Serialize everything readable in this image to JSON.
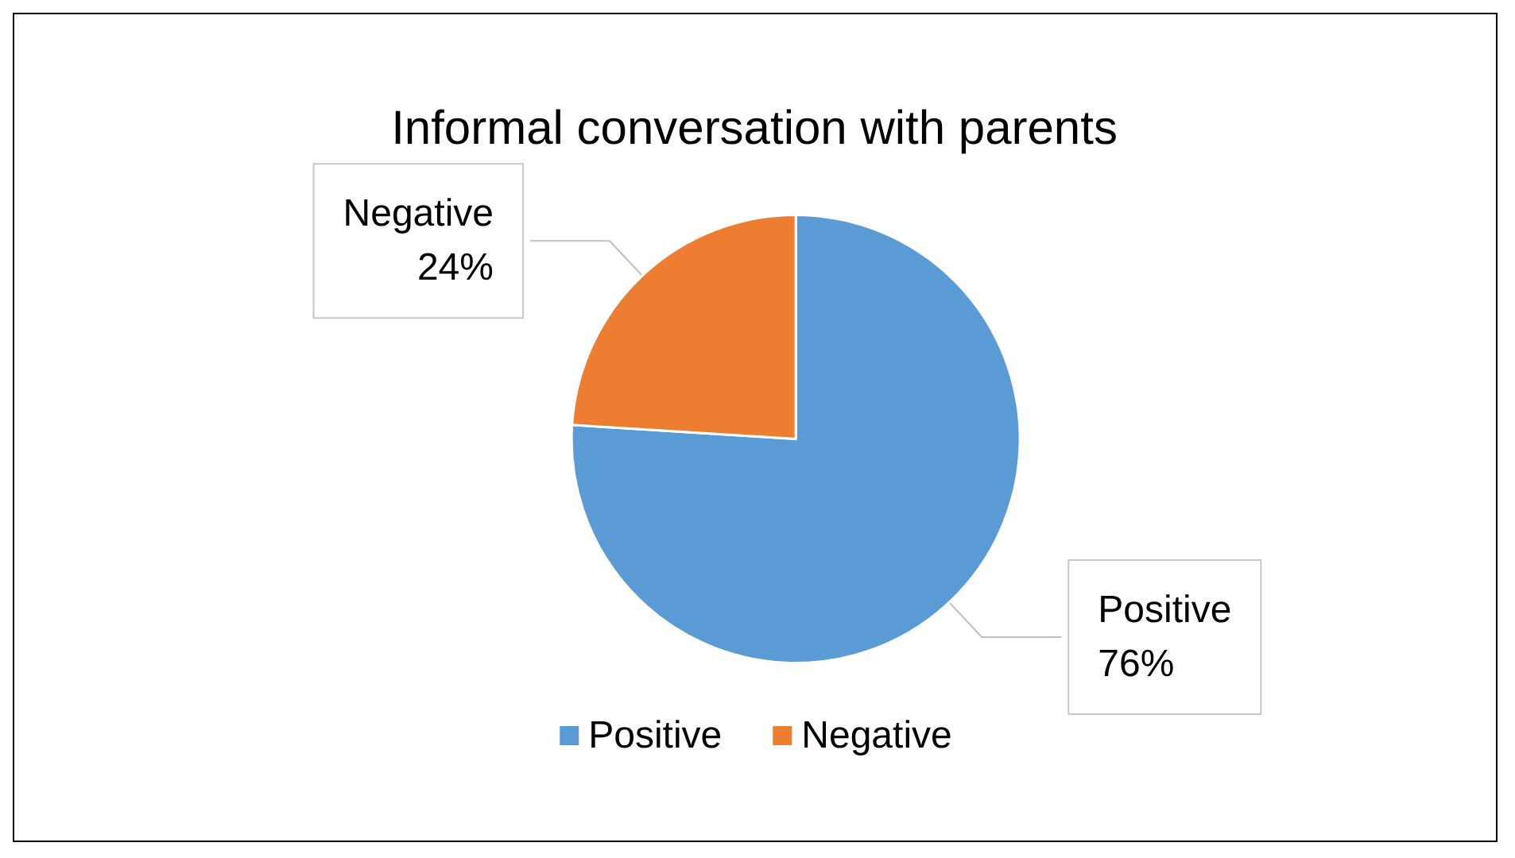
{
  "chart_data": {
    "type": "pie",
    "title": "Informal conversation with parents",
    "categories": [
      "Positive",
      "Negative"
    ],
    "values": [
      76,
      24
    ],
    "value_labels": [
      "76%",
      "24%"
    ],
    "colors": [
      "#5b9bd5",
      "#ed7d31"
    ],
    "legend": "bottom"
  }
}
